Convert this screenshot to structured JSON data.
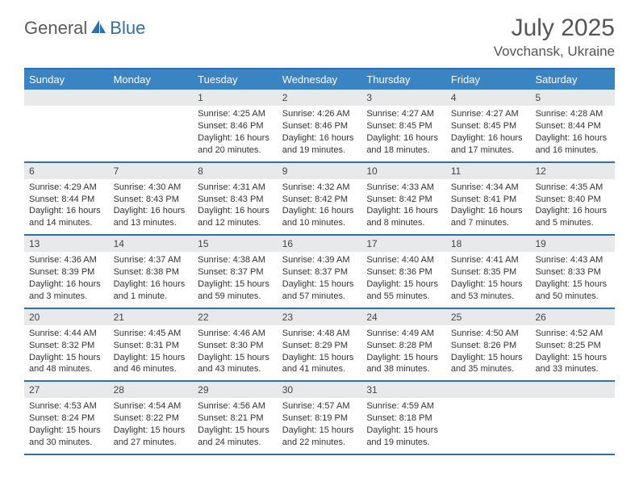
{
  "logo": {
    "text1": "General",
    "text2": "Blue"
  },
  "title": "July 2025",
  "location": "Vovchansk, Ukraine",
  "colors": {
    "header_bg": "#3b84c4",
    "border": "#2f6fb0",
    "daynum_bg": "#e7e9ea",
    "text": "#333333",
    "title_color": "#555555"
  },
  "dayNames": [
    "Sunday",
    "Monday",
    "Tuesday",
    "Wednesday",
    "Thursday",
    "Friday",
    "Saturday"
  ],
  "weeks": [
    [
      null,
      null,
      {
        "n": "1",
        "sr": "4:25 AM",
        "ss": "8:46 PM",
        "dl": "16 hours and 20 minutes."
      },
      {
        "n": "2",
        "sr": "4:26 AM",
        "ss": "8:46 PM",
        "dl": "16 hours and 19 minutes."
      },
      {
        "n": "3",
        "sr": "4:27 AM",
        "ss": "8:45 PM",
        "dl": "16 hours and 18 minutes."
      },
      {
        "n": "4",
        "sr": "4:27 AM",
        "ss": "8:45 PM",
        "dl": "16 hours and 17 minutes."
      },
      {
        "n": "5",
        "sr": "4:28 AM",
        "ss": "8:44 PM",
        "dl": "16 hours and 16 minutes."
      }
    ],
    [
      {
        "n": "6",
        "sr": "4:29 AM",
        "ss": "8:44 PM",
        "dl": "16 hours and 14 minutes."
      },
      {
        "n": "7",
        "sr": "4:30 AM",
        "ss": "8:43 PM",
        "dl": "16 hours and 13 minutes."
      },
      {
        "n": "8",
        "sr": "4:31 AM",
        "ss": "8:43 PM",
        "dl": "16 hours and 12 minutes."
      },
      {
        "n": "9",
        "sr": "4:32 AM",
        "ss": "8:42 PM",
        "dl": "16 hours and 10 minutes."
      },
      {
        "n": "10",
        "sr": "4:33 AM",
        "ss": "8:42 PM",
        "dl": "16 hours and 8 minutes."
      },
      {
        "n": "11",
        "sr": "4:34 AM",
        "ss": "8:41 PM",
        "dl": "16 hours and 7 minutes."
      },
      {
        "n": "12",
        "sr": "4:35 AM",
        "ss": "8:40 PM",
        "dl": "16 hours and 5 minutes."
      }
    ],
    [
      {
        "n": "13",
        "sr": "4:36 AM",
        "ss": "8:39 PM",
        "dl": "16 hours and 3 minutes."
      },
      {
        "n": "14",
        "sr": "4:37 AM",
        "ss": "8:38 PM",
        "dl": "16 hours and 1 minute."
      },
      {
        "n": "15",
        "sr": "4:38 AM",
        "ss": "8:37 PM",
        "dl": "15 hours and 59 minutes."
      },
      {
        "n": "16",
        "sr": "4:39 AM",
        "ss": "8:37 PM",
        "dl": "15 hours and 57 minutes."
      },
      {
        "n": "17",
        "sr": "4:40 AM",
        "ss": "8:36 PM",
        "dl": "15 hours and 55 minutes."
      },
      {
        "n": "18",
        "sr": "4:41 AM",
        "ss": "8:35 PM",
        "dl": "15 hours and 53 minutes."
      },
      {
        "n": "19",
        "sr": "4:43 AM",
        "ss": "8:33 PM",
        "dl": "15 hours and 50 minutes."
      }
    ],
    [
      {
        "n": "20",
        "sr": "4:44 AM",
        "ss": "8:32 PM",
        "dl": "15 hours and 48 minutes."
      },
      {
        "n": "21",
        "sr": "4:45 AM",
        "ss": "8:31 PM",
        "dl": "15 hours and 46 minutes."
      },
      {
        "n": "22",
        "sr": "4:46 AM",
        "ss": "8:30 PM",
        "dl": "15 hours and 43 minutes."
      },
      {
        "n": "23",
        "sr": "4:48 AM",
        "ss": "8:29 PM",
        "dl": "15 hours and 41 minutes."
      },
      {
        "n": "24",
        "sr": "4:49 AM",
        "ss": "8:28 PM",
        "dl": "15 hours and 38 minutes."
      },
      {
        "n": "25",
        "sr": "4:50 AM",
        "ss": "8:26 PM",
        "dl": "15 hours and 35 minutes."
      },
      {
        "n": "26",
        "sr": "4:52 AM",
        "ss": "8:25 PM",
        "dl": "15 hours and 33 minutes."
      }
    ],
    [
      {
        "n": "27",
        "sr": "4:53 AM",
        "ss": "8:24 PM",
        "dl": "15 hours and 30 minutes."
      },
      {
        "n": "28",
        "sr": "4:54 AM",
        "ss": "8:22 PM",
        "dl": "15 hours and 27 minutes."
      },
      {
        "n": "29",
        "sr": "4:56 AM",
        "ss": "8:21 PM",
        "dl": "15 hours and 24 minutes."
      },
      {
        "n": "30",
        "sr": "4:57 AM",
        "ss": "8:19 PM",
        "dl": "15 hours and 22 minutes."
      },
      {
        "n": "31",
        "sr": "4:59 AM",
        "ss": "8:18 PM",
        "dl": "15 hours and 19 minutes."
      },
      null,
      null
    ]
  ],
  "labels": {
    "sunrise": "Sunrise:",
    "sunset": "Sunset:",
    "daylight": "Daylight:"
  }
}
